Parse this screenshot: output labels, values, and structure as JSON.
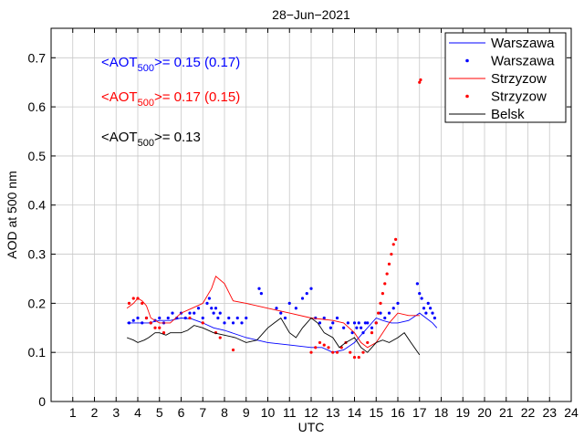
{
  "chart_data": {
    "type": "line+scatter",
    "title": "28−Jun−2021",
    "xlabel": "UTC",
    "ylabel": "AOD at 500 nm",
    "xlim": [
      0,
      24
    ],
    "ylim": [
      0,
      0.76
    ],
    "xticks": [
      1,
      2,
      3,
      4,
      5,
      6,
      7,
      8,
      9,
      10,
      11,
      12,
      13,
      14,
      15,
      16,
      17,
      18,
      19,
      20,
      21,
      22,
      23,
      24
    ],
    "yticks": [
      0,
      0.1,
      0.2,
      0.3,
      0.4,
      0.5,
      0.6,
      0.7
    ],
    "ytick_labels": [
      "0",
      "0.1",
      "0.2",
      "0.3",
      "0.4",
      "0.5",
      "0.6",
      "0.7"
    ],
    "grid": true,
    "legend_position": "top-right",
    "colors": {
      "Warszawa": "#0000ff",
      "Strzyzow": "#ff0000",
      "Belsk": "#000000"
    },
    "annotations": [
      {
        "prefix": "<AOT",
        "sub": "500",
        "suffix": ">= 0.15 (0.17)",
        "color": "#0000ff"
      },
      {
        "prefix": "<AOT",
        "sub": "500",
        "suffix": ">= 0.17 (0.15)",
        "color": "#ff0000"
      },
      {
        "prefix": "<AOT",
        "sub": "500",
        "suffix": ">= 0.13",
        "color": "#000000"
      }
    ],
    "series": [
      {
        "name": "Warszawa",
        "style": "line",
        "color": "#0000ff",
        "x": [
          3.5,
          4.0,
          4.5,
          5.0,
          5.5,
          6.0,
          6.5,
          7.0,
          7.5,
          8.0,
          9.0,
          10.0,
          11.0,
          12.0,
          12.5,
          13.0,
          13.5,
          14.0,
          14.3,
          14.6,
          15.0,
          15.3,
          15.7,
          16.0,
          16.5,
          17.0,
          17.3,
          17.6,
          17.8
        ],
        "y": [
          0.16,
          0.16,
          0.16,
          0.165,
          0.165,
          0.17,
          0.168,
          0.16,
          0.15,
          0.145,
          0.13,
          0.12,
          0.115,
          0.11,
          0.11,
          0.1,
          0.105,
          0.12,
          0.135,
          0.15,
          0.17,
          0.165,
          0.16,
          0.16,
          0.165,
          0.18,
          0.17,
          0.16,
          0.15
        ]
      },
      {
        "name": "Warszawa",
        "style": "dots",
        "color": "#0000ff",
        "x": [
          3.6,
          3.8,
          4.0,
          4.2,
          4.4,
          4.6,
          4.8,
          5.0,
          5.2,
          5.4,
          5.6,
          5.8,
          6.0,
          6.2,
          6.4,
          6.6,
          6.8,
          7.0,
          7.2,
          7.3,
          7.4,
          7.5,
          7.6,
          7.7,
          7.8,
          8.0,
          8.2,
          8.4,
          8.6,
          8.8,
          9.0,
          9.6,
          9.7,
          10.4,
          10.6,
          10.8,
          11.0,
          11.3,
          11.6,
          11.8,
          12.0,
          12.2,
          12.4,
          12.6,
          12.9,
          13.0,
          13.2,
          13.5,
          13.7,
          13.9,
          14.0,
          14.1,
          14.2,
          14.3,
          14.4,
          14.5,
          14.6,
          14.8,
          15.0,
          15.2,
          15.4,
          15.6,
          15.8,
          16.0,
          16.9,
          17.0,
          17.1,
          17.2,
          17.3,
          17.4,
          17.5,
          17.6,
          17.7
        ],
        "y": [
          0.16,
          0.165,
          0.17,
          0.16,
          0.17,
          0.16,
          0.165,
          0.17,
          0.16,
          0.17,
          0.18,
          0.17,
          0.18,
          0.17,
          0.18,
          0.18,
          0.19,
          0.17,
          0.2,
          0.21,
          0.19,
          0.18,
          0.19,
          0.17,
          0.18,
          0.16,
          0.17,
          0.16,
          0.17,
          0.16,
          0.17,
          0.23,
          0.22,
          0.19,
          0.18,
          0.17,
          0.2,
          0.19,
          0.21,
          0.22,
          0.23,
          0.17,
          0.16,
          0.17,
          0.15,
          0.16,
          0.17,
          0.15,
          0.16,
          0.14,
          0.16,
          0.15,
          0.16,
          0.15,
          0.14,
          0.16,
          0.16,
          0.15,
          0.16,
          0.18,
          0.17,
          0.18,
          0.19,
          0.2,
          0.24,
          0.22,
          0.21,
          0.19,
          0.18,
          0.2,
          0.19,
          0.18,
          0.17
        ]
      },
      {
        "name": "Strzyzow",
        "style": "line",
        "color": "#ff0000",
        "x": [
          3.5,
          3.8,
          4.0,
          4.2,
          4.4,
          4.6,
          5.0,
          5.5,
          6.0,
          6.5,
          7.0,
          7.4,
          7.6,
          8.0,
          8.4,
          9.0,
          10.0,
          11.0,
          12.0,
          13.0,
          13.5,
          14.0,
          14.3,
          14.6,
          15.0,
          15.3,
          15.6,
          16.0,
          16.5,
          17.0
        ],
        "y": [
          0.19,
          0.2,
          0.21,
          0.205,
          0.195,
          0.17,
          0.16,
          0.16,
          0.18,
          0.19,
          0.2,
          0.23,
          0.255,
          0.24,
          0.205,
          0.2,
          0.19,
          0.18,
          0.17,
          0.165,
          0.16,
          0.14,
          0.12,
          0.11,
          0.12,
          0.14,
          0.16,
          0.18,
          0.175,
          0.175
        ]
      },
      {
        "name": "Strzyzow",
        "style": "dots",
        "color": "#ff0000",
        "x": [
          3.6,
          3.8,
          4.0,
          4.2,
          4.4,
          4.6,
          4.8,
          5.0,
          5.2,
          6.4,
          7.0,
          7.6,
          7.8,
          8.4,
          12.0,
          12.2,
          12.4,
          12.6,
          12.8,
          13.0,
          13.2,
          13.4,
          13.6,
          13.8,
          14.0,
          14.2,
          14.4,
          14.6,
          14.8,
          15.0,
          15.1,
          15.2,
          15.3,
          15.4,
          15.5,
          15.6,
          15.7,
          15.8,
          15.9,
          17.0,
          17.05
        ],
        "y": [
          0.2,
          0.21,
          0.21,
          0.2,
          0.17,
          0.16,
          0.15,
          0.15,
          0.14,
          0.17,
          0.16,
          0.14,
          0.13,
          0.105,
          0.1,
          0.11,
          0.12,
          0.115,
          0.11,
          0.1,
          0.1,
          0.11,
          0.12,
          0.1,
          0.09,
          0.09,
          0.1,
          0.12,
          0.14,
          0.16,
          0.18,
          0.2,
          0.22,
          0.24,
          0.26,
          0.28,
          0.3,
          0.32,
          0.33,
          0.65,
          0.655
        ]
      },
      {
        "name": "Belsk",
        "style": "line",
        "color": "#000000",
        "x": [
          3.5,
          3.8,
          4.0,
          4.3,
          4.5,
          4.8,
          5.0,
          5.3,
          5.5,
          5.8,
          6.0,
          6.3,
          6.6,
          7.0,
          7.5,
          8.0,
          8.5,
          9.0,
          9.5,
          10.0,
          10.3,
          10.6,
          11.0,
          11.3,
          11.6,
          12.0,
          12.3,
          12.6,
          13.0,
          13.3,
          13.6,
          14.0,
          14.3,
          14.6,
          15.0,
          15.3,
          15.6,
          16.0,
          16.3,
          16.6,
          17.0
        ],
        "y": [
          0.13,
          0.125,
          0.12,
          0.125,
          0.13,
          0.14,
          0.14,
          0.135,
          0.14,
          0.14,
          0.14,
          0.145,
          0.155,
          0.15,
          0.14,
          0.135,
          0.13,
          0.12,
          0.125,
          0.15,
          0.16,
          0.17,
          0.14,
          0.13,
          0.15,
          0.17,
          0.16,
          0.14,
          0.13,
          0.11,
          0.12,
          0.13,
          0.11,
          0.1,
          0.12,
          0.125,
          0.12,
          0.13,
          0.14,
          0.12,
          0.095
        ]
      }
    ]
  }
}
